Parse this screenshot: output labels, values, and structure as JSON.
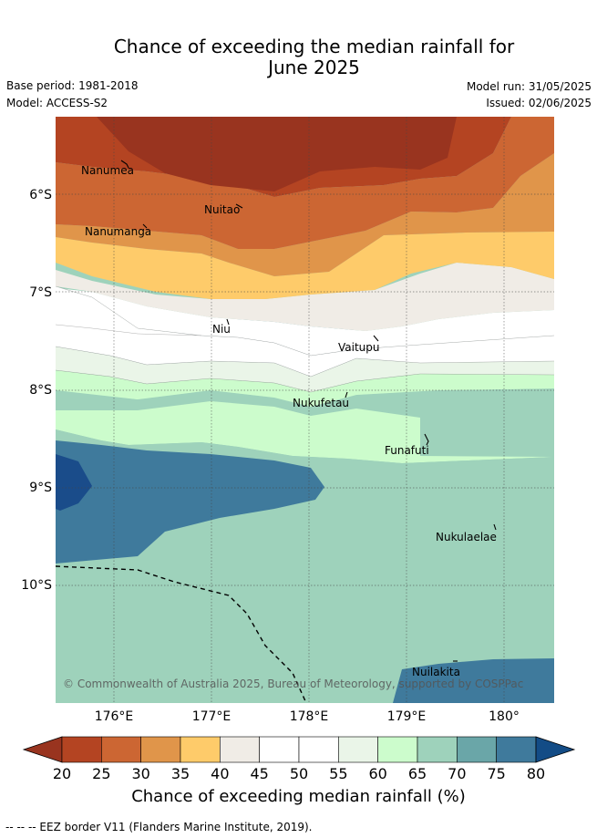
{
  "title_line1": "Chance of exceeding the median rainfall for",
  "title_line2": "June 2025",
  "base_period": "Base period: 1981-2018",
  "model": "Model: ACCESS-S2",
  "model_run": "Model run: 31/05/2025",
  "issued": "Issued: 02/06/2025",
  "y_ticks": [
    "6°S",
    "7°S",
    "8°S",
    "9°S",
    "10°S"
  ],
  "x_ticks": [
    "176°E",
    "177°E",
    "178°E",
    "179°E",
    "180°"
  ],
  "places": [
    "Nanumea",
    "Nuitao",
    "Nanumanga",
    "Niu",
    "Vaitupu",
    "Nukufetau",
    "Funafuti",
    "Nukulaelae",
    "Nuilakita"
  ],
  "copyright": "© Commonwealth of Australia 2025, Bureau of Meteorology, supported by COSPPac",
  "colorbar": {
    "ticks": [
      "20",
      "25",
      "30",
      "35",
      "40",
      "45",
      "50",
      "55",
      "60",
      "65",
      "70",
      "75",
      "80"
    ],
    "colors": [
      "#b44422",
      "#cc6633",
      "#e0954a",
      "#fecb6a",
      "#f0ece6",
      "#ffffff",
      "#ffffff",
      "#eaf5e8",
      "#ccfccc",
      "#9ed2bb",
      "#6aa6a8",
      "#3f7a9c",
      "#1a4c8a"
    ],
    "under_color": "#99341f",
    "over_color": "#134c86",
    "title": "Chance of exceeding median rainfall (%)"
  },
  "footnote": "-- -- -- EEZ border V11 (Flanders Marine Institute, 2019)."
}
